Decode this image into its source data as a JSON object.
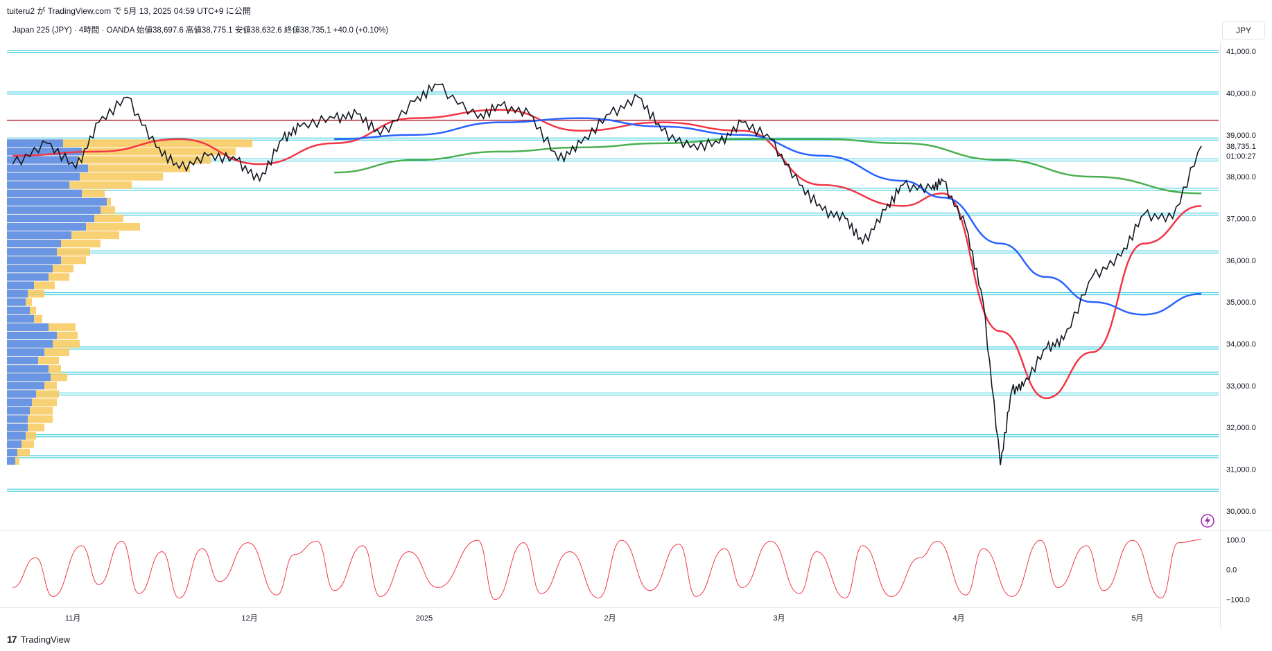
{
  "header": {
    "publish_line": "tuiteru2 が TradingView.com で 5月 13, 2025 04:59 UTC+9 に公開"
  },
  "symbol": {
    "line": "Japan 225 (JPY) · 4時間 · OANDA 始値38,697.6 高値38,775.1 安値38,632.6 終値38,735.1 +40.0 (+0.10%)"
  },
  "currency": "JPY",
  "last_price": {
    "value": "38,735.1",
    "countdown": "01:00:27"
  },
  "footer": {
    "brand": "TradingView",
    "logo_text": "17"
  },
  "colors": {
    "ma_fast": "#f23645",
    "ma_mid": "#2962ff",
    "ma_slow": "#4caf50",
    "level_line": "#26c6da",
    "resistance": "#b22833",
    "vp_up": "#5b8ff0",
    "vp_down": "#f8c95d",
    "oscillator": "#f23645"
  },
  "chart_data": {
    "type": "line",
    "title": "",
    "price_axis": {
      "ylim": [
        29600,
        41200
      ],
      "ticks": [
        30000,
        31000,
        32000,
        33000,
        34000,
        35000,
        36000,
        37000,
        38000,
        39000,
        40000,
        41000
      ],
      "tick_labels": [
        "30,000.0",
        "31,000.0",
        "32,000.0",
        "33,000.0",
        "34,000.0",
        "35,000.0",
        "36,000.0",
        "37,000.0",
        "38,000.0",
        "39,000.0",
        "40,000.0",
        "41,000.0"
      ]
    },
    "time_axis": {
      "labels": [
        "11月",
        "12月",
        "2025",
        "2月",
        "3月",
        "4月",
        "5月"
      ]
    },
    "price_path": {
      "x": [
        "2024-10-17",
        "2024-10-23",
        "2024-10-28",
        "2024-11-01",
        "2024-11-06",
        "2024-11-11",
        "2024-11-15",
        "2024-11-20",
        "2024-11-25",
        "2024-11-29",
        "2024-12-03",
        "2024-12-06",
        "2024-12-12",
        "2024-12-16",
        "2024-12-20",
        "2024-12-26",
        "2024-12-30",
        "2025-01-06",
        "2025-01-10",
        "2025-01-15",
        "2025-01-20",
        "2025-01-24",
        "2025-01-29",
        "2025-02-03",
        "2025-02-07",
        "2025-02-12",
        "2025-02-17",
        "2025-02-21",
        "2025-02-26",
        "2025-03-03",
        "2025-03-07",
        "2025-03-11",
        "2025-03-14",
        "2025-03-18",
        "2025-03-21",
        "2025-03-26",
        "2025-03-28",
        "2025-04-01",
        "2025-04-04",
        "2025-04-07",
        "2025-04-09",
        "2025-04-11",
        "2025-04-15",
        "2025-04-18",
        "2025-04-23",
        "2025-04-28",
        "2025-05-02",
        "2025-05-07",
        "2025-05-12"
      ],
      "y": [
        38300,
        38800,
        38200,
        39300,
        39900,
        38700,
        38200,
        38500,
        38400,
        37900,
        38900,
        39200,
        39400,
        39500,
        39000,
        39800,
        40200,
        39400,
        39700,
        39500,
        38400,
        38800,
        39500,
        39900,
        39100,
        38700,
        38800,
        39300,
        38900,
        37800,
        37200,
        37000,
        36400,
        37200,
        37800,
        37700,
        37900,
        36800,
        35000,
        31100,
        32900,
        33000,
        33900,
        34100,
        35600,
        36100,
        37100,
        37000,
        38735
      ]
    },
    "moving_averages": [
      {
        "name": "",
        "color_key": "ma_fast",
        "x": [
          "2024-10-17",
          "2024-11-01",
          "2024-11-15",
          "2024-11-29",
          "2024-12-12",
          "2024-12-26",
          "2025-01-10",
          "2025-01-24",
          "2025-02-07",
          "2025-02-21",
          "2025-03-07",
          "2025-03-21",
          "2025-03-28",
          "2025-04-07",
          "2025-04-15",
          "2025-04-23",
          "2025-05-02",
          "2025-05-12"
        ],
        "y": [
          38500,
          38600,
          38900,
          38300,
          38800,
          39400,
          39600,
          39100,
          39300,
          39100,
          37800,
          37300,
          37600,
          34300,
          32700,
          33800,
          36400,
          37300
        ]
      },
      {
        "name": "",
        "color_key": "ma_mid",
        "x": [
          "2024-12-12",
          "2024-12-26",
          "2025-01-10",
          "2025-01-24",
          "2025-02-07",
          "2025-02-21",
          "2025-03-07",
          "2025-03-21",
          "2025-03-28",
          "2025-04-07",
          "2025-04-15",
          "2025-04-23",
          "2025-05-02",
          "2025-05-12"
        ],
        "y": [
          38900,
          39000,
          39300,
          39400,
          39200,
          39000,
          38500,
          37900,
          37500,
          36400,
          35600,
          35000,
          34700,
          35200
        ]
      },
      {
        "name": "",
        "color_key": "ma_slow",
        "x": [
          "2024-12-12",
          "2024-12-26",
          "2025-01-10",
          "2025-01-24",
          "2025-02-07",
          "2025-02-21",
          "2025-03-07",
          "2025-03-21",
          "2025-04-07",
          "2025-04-23",
          "2025-05-12"
        ],
        "y": [
          38100,
          38400,
          38600,
          38700,
          38800,
          38900,
          38900,
          38800,
          38400,
          38000,
          37600
        ]
      }
    ],
    "horizontal_levels": [
      30500,
      31300,
      31800,
      32800,
      33300,
      33900,
      35200,
      36200,
      37100,
      37700,
      38400,
      38900,
      40000,
      41000
    ],
    "resistance_level": 39350,
    "volume_profile": {
      "price_bins": [
        38800,
        38600,
        38400,
        38200,
        38000,
        37800,
        37600,
        37400,
        37200,
        37000,
        36800,
        36600,
        36400,
        36200,
        36000,
        35800,
        35600,
        35400,
        35200,
        35000,
        34800,
        34600,
        34400,
        34200,
        34000,
        33800,
        33600,
        33400,
        33200,
        33000,
        32800,
        32600,
        32400,
        32200,
        32000,
        31800,
        31600,
        31400,
        31200
      ],
      "up_volume": [
        54,
        72,
        68,
        78,
        70,
        60,
        72,
        96,
        90,
        84,
        76,
        62,
        52,
        48,
        52,
        44,
        40,
        26,
        20,
        18,
        22,
        26,
        40,
        48,
        44,
        36,
        30,
        40,
        42,
        36,
        28,
        24,
        22,
        20,
        20,
        18,
        14,
        10,
        8
      ],
      "down_volume": [
        236,
        220,
        196,
        176,
        150,
        120,
        94,
        100,
        104,
        112,
        128,
        108,
        90,
        80,
        76,
        64,
        60,
        46,
        36,
        24,
        28,
        34,
        66,
        68,
        70,
        60,
        50,
        52,
        58,
        48,
        50,
        48,
        44,
        44,
        36,
        28,
        26,
        22,
        12
      ]
    },
    "oscillator": {
      "ylim": [
        -110,
        110
      ],
      "ticks": [
        100,
        0,
        -100
      ],
      "tick_labels": [
        "100.0",
        "0.0",
        "−100.0"
      ],
      "x": [
        "2024-10-17",
        "2024-10-21",
        "2024-10-24",
        "2024-10-29",
        "2024-11-01",
        "2024-11-05",
        "2024-11-08",
        "2024-11-12",
        "2024-11-15",
        "2024-11-19",
        "2024-11-22",
        "2024-11-27",
        "2024-12-02",
        "2024-12-05",
        "2024-12-09",
        "2024-12-12",
        "2024-12-17",
        "2024-12-20",
        "2024-12-25",
        "2024-12-30",
        "2025-01-06",
        "2025-01-09",
        "2025-01-14",
        "2025-01-17",
        "2025-01-22",
        "2025-01-27",
        "2025-01-31",
        "2025-02-05",
        "2025-02-10",
        "2025-02-13",
        "2025-02-18",
        "2025-02-21",
        "2025-02-26",
        "2025-03-03",
        "2025-03-06",
        "2025-03-11",
        "2025-03-14",
        "2025-03-19",
        "2025-03-24",
        "2025-03-27",
        "2025-04-01",
        "2025-04-04",
        "2025-04-09",
        "2025-04-14",
        "2025-04-17",
        "2025-04-22",
        "2025-04-25",
        "2025-04-30",
        "2025-05-05",
        "2025-05-08",
        "2025-05-12"
      ],
      "y": [
        -60,
        40,
        -90,
        80,
        -50,
        95,
        -80,
        60,
        -95,
        70,
        -40,
        90,
        -85,
        50,
        95,
        -70,
        80,
        -90,
        60,
        -60,
        98,
        -100,
        90,
        -80,
        60,
        -95,
        98,
        -70,
        85,
        -90,
        70,
        -60,
        95,
        -80,
        60,
        -95,
        80,
        -90,
        40,
        95,
        -85,
        70,
        -90,
        98,
        -60,
        80,
        -70,
        98,
        -95,
        90,
        100
      ]
    }
  }
}
